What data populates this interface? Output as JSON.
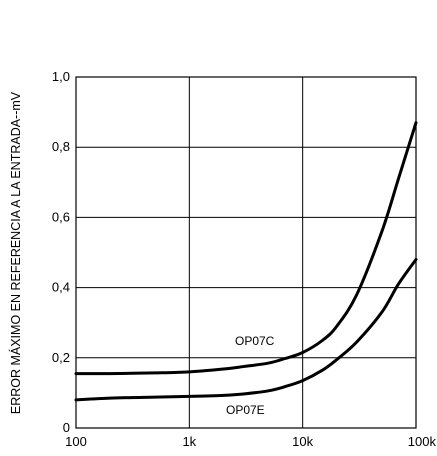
{
  "chart_data": {
    "type": "line",
    "title": "",
    "xlabel": "",
    "ylabel": "ERROR MÁXIMO EN REFERENCIA A LA ENTRADA--mV",
    "x_scale": "log",
    "xlim": [
      100,
      100000
    ],
    "ylim": [
      0,
      1.0
    ],
    "x_ticks": [
      {
        "value": 100,
        "label": "100"
      },
      {
        "value": 1000,
        "label": "1k"
      },
      {
        "value": 10000,
        "label": "10k"
      },
      {
        "value": 100000,
        "label": "100k"
      }
    ],
    "y_ticks": [
      {
        "value": 0,
        "label": "0"
      },
      {
        "value": 0.2,
        "label": "0,2"
      },
      {
        "value": 0.4,
        "label": "0,4"
      },
      {
        "value": 0.6,
        "label": "0,6"
      },
      {
        "value": 0.8,
        "label": "0,8"
      },
      {
        "value": 1.0,
        "label": "1,0"
      }
    ],
    "grid": true,
    "legend": "none",
    "series": [
      {
        "name": "OP07C",
        "x": [
          100,
          200,
          500,
          1000,
          2000,
          3000,
          5000,
          7000,
          10000,
          15000,
          20000,
          30000,
          50000,
          70000,
          100000
        ],
        "values": [
          0.155,
          0.155,
          0.157,
          0.16,
          0.168,
          0.175,
          0.185,
          0.198,
          0.215,
          0.25,
          0.29,
          0.38,
          0.56,
          0.71,
          0.87
        ]
      },
      {
        "name": "OP07E",
        "x": [
          100,
          200,
          500,
          1000,
          2000,
          3000,
          5000,
          7000,
          10000,
          15000,
          20000,
          30000,
          50000,
          70000,
          100000
        ],
        "values": [
          0.08,
          0.085,
          0.088,
          0.09,
          0.093,
          0.097,
          0.106,
          0.118,
          0.135,
          0.165,
          0.195,
          0.245,
          0.33,
          0.41,
          0.48
        ]
      }
    ]
  }
}
